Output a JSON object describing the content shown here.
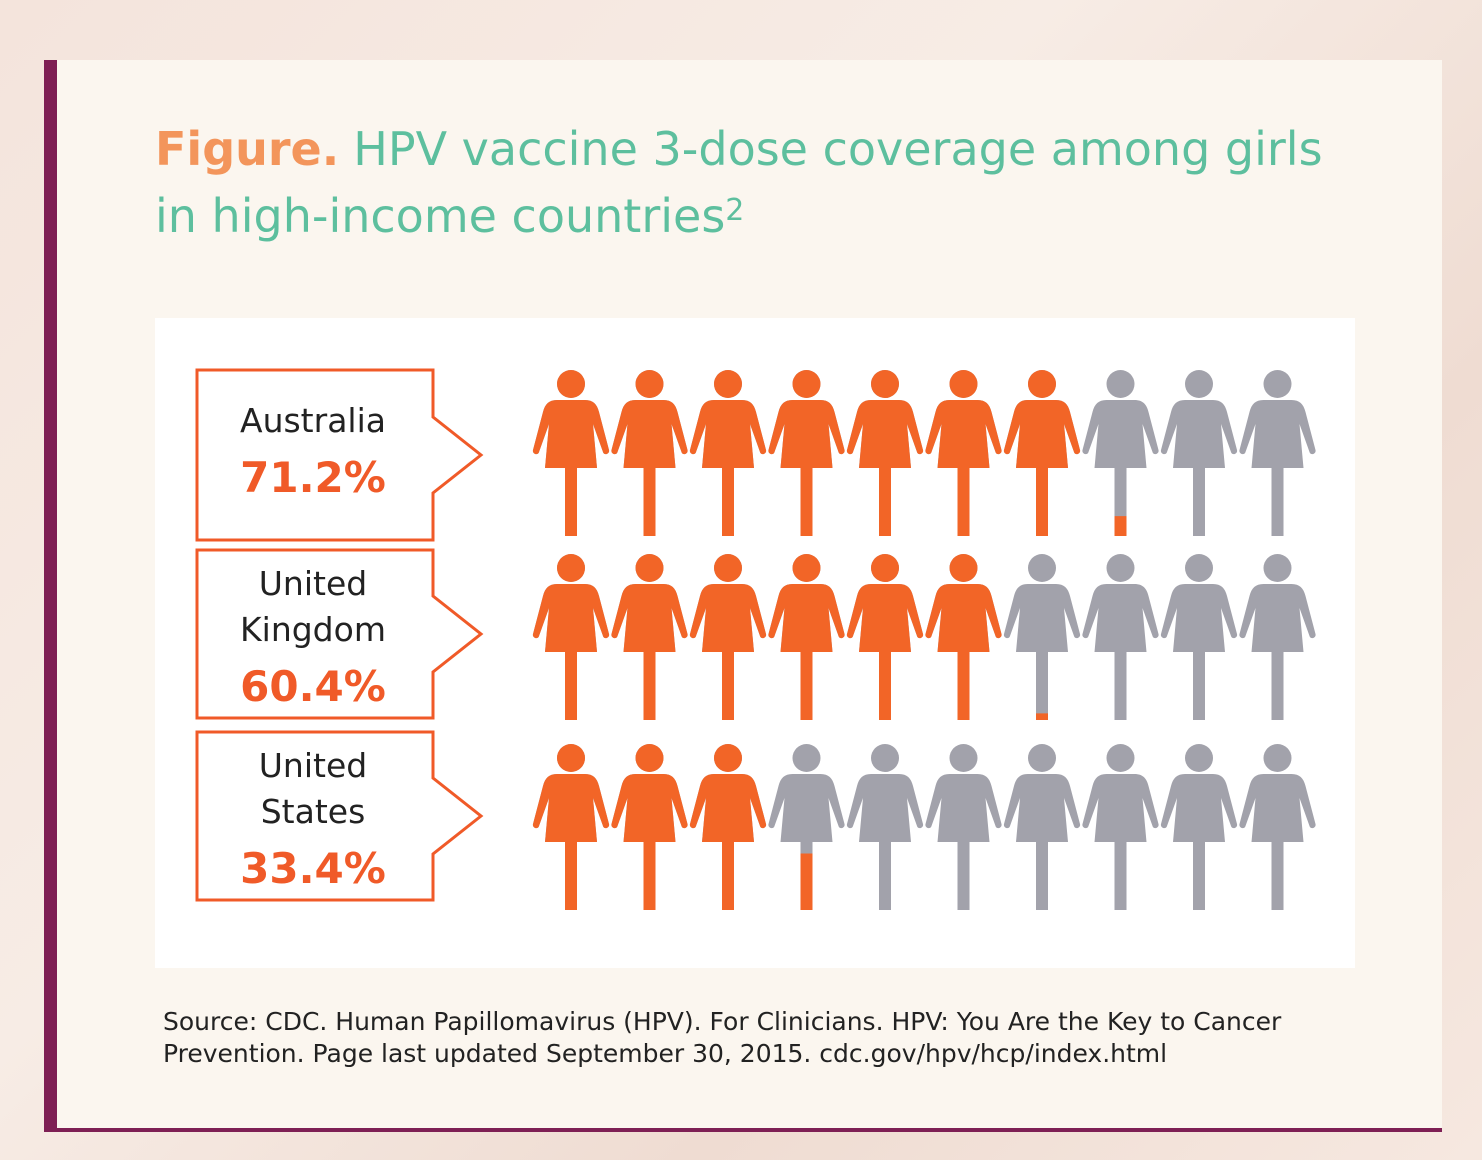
{
  "figure": {
    "lead": "Figure.",
    "title": "HPV vaccine 3-dose coverage among girls in high-income countries",
    "footnote_mark": "2"
  },
  "chart_data": {
    "type": "bar",
    "icons_per_row": 10,
    "categories": [
      "Australia",
      "United Kingdom",
      "United States"
    ],
    "category_lines": [
      [
        "Australia"
      ],
      [
        "United",
        "Kingdom"
      ],
      [
        "United",
        "States"
      ]
    ],
    "values": [
      71.2,
      60.4,
      33.4
    ],
    "value_labels": [
      "71.2%",
      "60.4%",
      "33.4%"
    ],
    "unit": "%",
    "colors": {
      "filled": "#f26527",
      "empty": "#a2a2ab",
      "box_border": "#f05a28",
      "value_text": "#f05a28"
    }
  },
  "source": "Source: CDC. Human Papillomavirus (HPV). For Clinicians. HPV: You Are the Key to Cancer Prevention. Page last updated September 30, 2015. cdc.gov/hpv/hcp/index.html",
  "colors": {
    "title": "#5dbf9e",
    "lead": "#f3955b",
    "card_border": "#7e1f54",
    "card_bg": "#fbf6ef"
  }
}
